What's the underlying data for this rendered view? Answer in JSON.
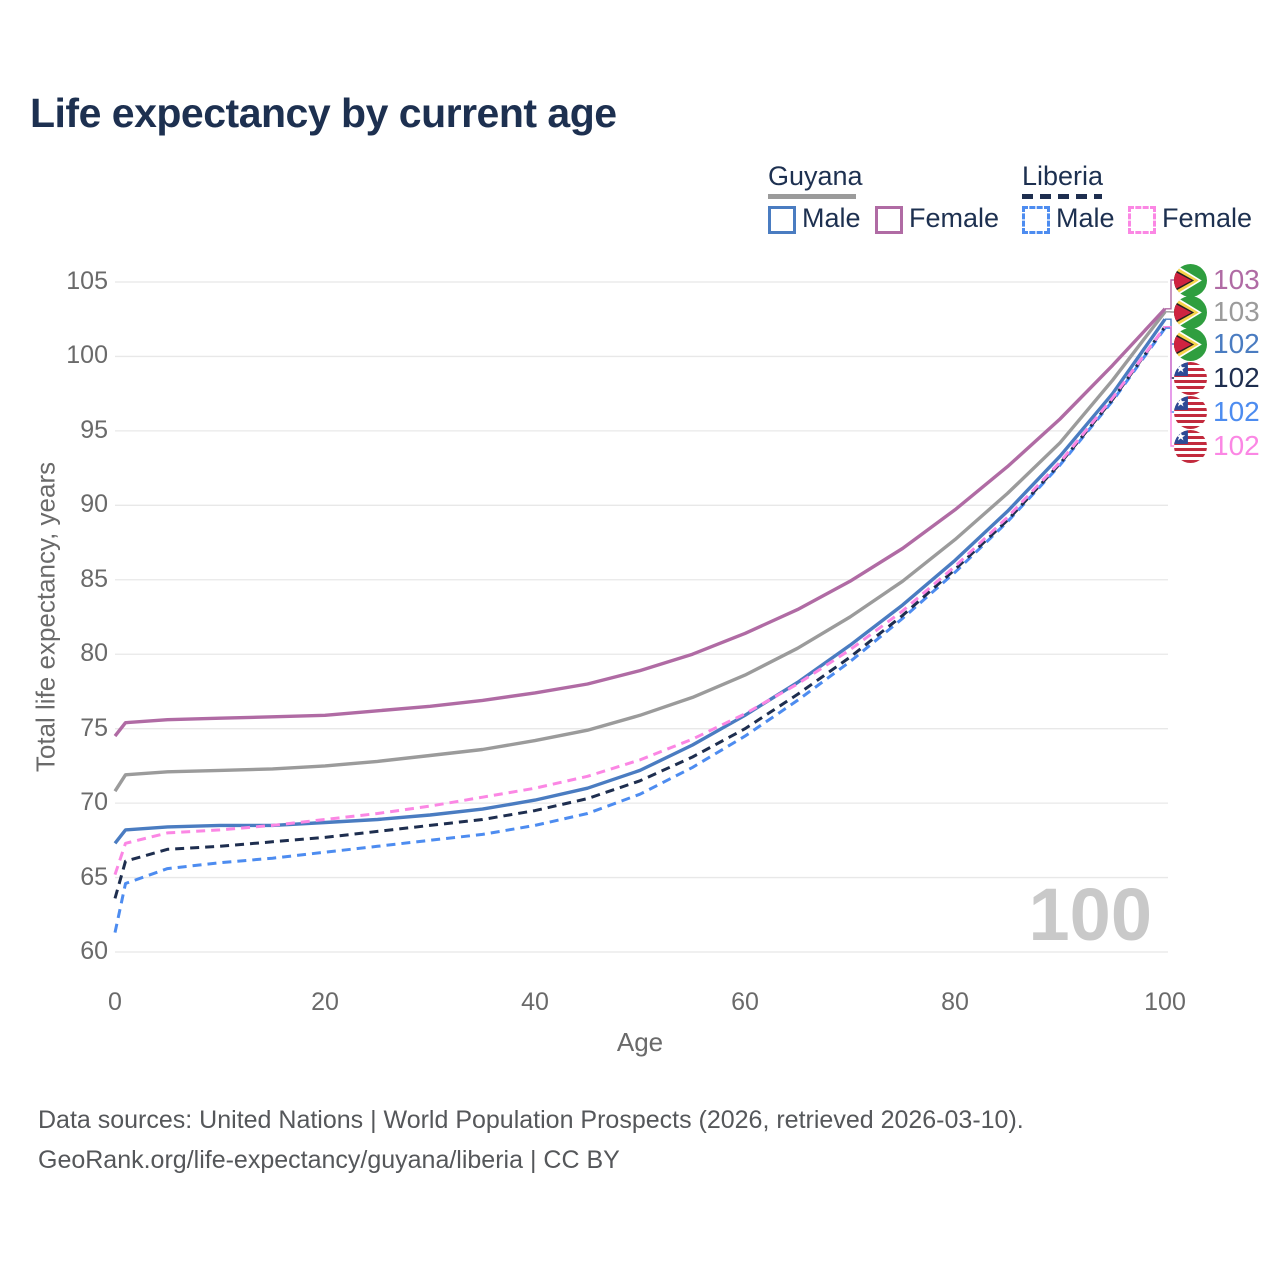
{
  "title": "Life expectancy by current age",
  "watermark": "100",
  "colors": {
    "background": "#ffffff",
    "grid": "#e8e8e8",
    "tick": "#6a6a6a",
    "title": "#1d3050",
    "watermark": "#c9c9c9",
    "footer": "#55575a",
    "guyana_male": "#4a7cc1",
    "guyana_female": "#b06ba4",
    "guyana_total": "#9b9b9b",
    "liberia_male": "#4d8cf0",
    "liberia_female": "#fb87e4",
    "liberia_total": "#1e2e4f"
  },
  "legend": {
    "groups": [
      {
        "name": "Guyana",
        "swatch_color": "#9b9b9b",
        "swatch_style": "solid",
        "items": [
          {
            "label": "Male",
            "color": "#4a7cc1",
            "style": "solid"
          },
          {
            "label": "Female",
            "color": "#b06ba4",
            "style": "solid"
          }
        ]
      },
      {
        "name": "Liberia",
        "swatch_color": "#1e2e4f",
        "swatch_style": "dashed",
        "items": [
          {
            "label": "Male",
            "color": "#4d8cf0",
            "style": "dashed"
          },
          {
            "label": "Female",
            "color": "#fb87e4",
            "style": "dashed"
          }
        ]
      }
    ]
  },
  "chart_data": {
    "type": "line",
    "title": "Life expectancy by current age",
    "xlabel": "Age",
    "ylabel": "Total life expectancy, years",
    "xlim": [
      0,
      100
    ],
    "ylim": [
      60,
      105
    ],
    "xticks": [
      0,
      20,
      40,
      60,
      80,
      100
    ],
    "yticks": [
      60,
      65,
      70,
      75,
      80,
      85,
      90,
      95,
      100,
      105
    ],
    "grid": true,
    "legend_position": "top-right",
    "ages": [
      0,
      1,
      5,
      10,
      15,
      20,
      25,
      30,
      35,
      40,
      45,
      50,
      55,
      60,
      65,
      70,
      75,
      80,
      85,
      90,
      95,
      100
    ],
    "series": [
      {
        "name": "Guyana (both sexes)",
        "color": "#9b9b9b",
        "dash": false,
        "label_row": 1,
        "values": [
          70.8,
          71.9,
          72.1,
          72.2,
          72.3,
          72.5,
          72.8,
          73.2,
          73.6,
          74.2,
          74.9,
          75.9,
          77.1,
          78.6,
          80.4,
          82.5,
          84.9,
          87.7,
          90.8,
          94.2,
          98.4,
          103.0
        ]
      },
      {
        "name": "Guyana Female",
        "color": "#b06ba4",
        "dash": false,
        "label_row": 0,
        "values": [
          74.5,
          75.4,
          75.6,
          75.7,
          75.8,
          75.9,
          76.2,
          76.5,
          76.9,
          77.4,
          78.0,
          78.9,
          80.0,
          81.4,
          83.0,
          84.9,
          87.1,
          89.7,
          92.6,
          95.8,
          99.4,
          103.2
        ]
      },
      {
        "name": "Guyana Male",
        "color": "#4a7cc1",
        "dash": false,
        "label_row": 2,
        "values": [
          67.3,
          68.2,
          68.4,
          68.5,
          68.5,
          68.7,
          68.9,
          69.2,
          69.6,
          70.2,
          71.0,
          72.2,
          73.9,
          75.9,
          78.1,
          80.6,
          83.3,
          86.3,
          89.6,
          93.3,
          97.5,
          102.5
        ]
      },
      {
        "name": "Liberia Male",
        "color": "#4d8cf0",
        "dash": true,
        "label_row": 4,
        "values": [
          61.3,
          64.6,
          65.6,
          66.0,
          66.3,
          66.7,
          67.1,
          67.5,
          67.9,
          68.5,
          69.3,
          70.6,
          72.4,
          74.5,
          76.9,
          79.5,
          82.4,
          85.5,
          88.9,
          92.7,
          97.0,
          101.9
        ]
      },
      {
        "name": "Liberia (both sexes)",
        "color": "#1e2e4f",
        "dash": true,
        "label_row": 3,
        "values": [
          63.6,
          66.1,
          66.9,
          67.1,
          67.4,
          67.7,
          68.1,
          68.5,
          68.9,
          69.5,
          70.3,
          71.5,
          73.1,
          75.0,
          77.3,
          79.8,
          82.6,
          85.7,
          89.0,
          92.8,
          97.1,
          102.0
        ]
      },
      {
        "name": "Liberia Female",
        "color": "#fb87e4",
        "dash": true,
        "label_row": 5,
        "values": [
          65.2,
          67.3,
          68.0,
          68.2,
          68.5,
          68.9,
          69.3,
          69.8,
          70.4,
          71.0,
          71.8,
          72.9,
          74.3,
          76.0,
          78.0,
          80.3,
          82.9,
          85.9,
          89.2,
          92.9,
          97.2,
          102.0
        ]
      }
    ]
  },
  "end_labels": [
    {
      "flag": "guyana",
      "text": "103",
      "color": "#b06ba4"
    },
    {
      "flag": "guyana",
      "text": "103",
      "color": "#9b9b9b"
    },
    {
      "flag": "guyana",
      "text": "102",
      "color": "#4a7cc1"
    },
    {
      "flag": "liberia",
      "text": "102",
      "color": "#1e2e4f"
    },
    {
      "flag": "liberia",
      "text": "102",
      "color": "#4d8cf0"
    },
    {
      "flag": "liberia",
      "text": "102",
      "color": "#fb87e4"
    }
  ],
  "footer": {
    "line1": "Data sources: United Nations | World Population Prospects (2026, retrieved 2026-03-10).",
    "line2": "GeoRank.org/life-expectancy/guyana/liberia | CC BY"
  }
}
